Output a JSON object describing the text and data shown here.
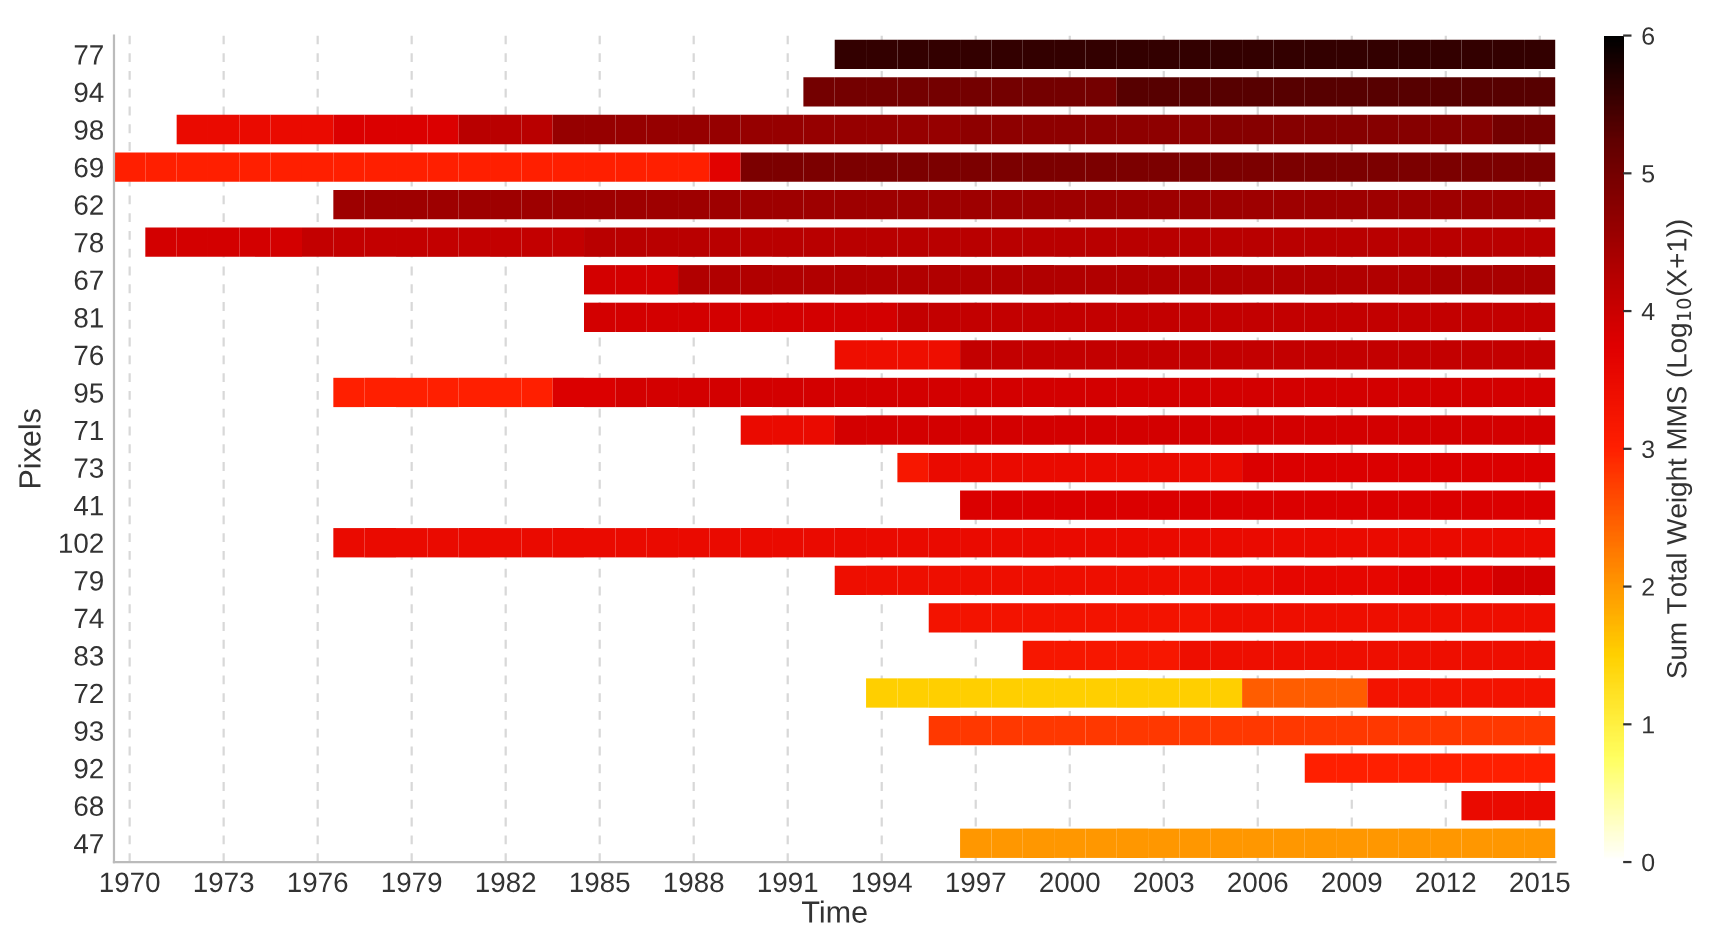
{
  "chart_data": {
    "type": "heatmap",
    "xlabel": "Time",
    "ylabel": "Pixels",
    "clabel": "Sum Total Weight MMS (Log$_{10}$(X+1))",
    "x": [
      1970,
      1971,
      1972,
      1973,
      1974,
      1975,
      1976,
      1977,
      1978,
      1979,
      1980,
      1981,
      1982,
      1983,
      1984,
      1985,
      1986,
      1987,
      1988,
      1989,
      1990,
      1991,
      1992,
      1993,
      1994,
      1995,
      1996,
      1997,
      1998,
      1999,
      2000,
      2001,
      2002,
      2003,
      2004,
      2005,
      2006,
      2007,
      2008,
      2009,
      2010,
      2011,
      2012,
      2013,
      2014,
      2015
    ],
    "xlim": [
      1969.5,
      2015.5
    ],
    "xticks": [
      1970,
      1973,
      1976,
      1979,
      1982,
      1985,
      1988,
      1991,
      1994,
      1997,
      2000,
      2003,
      2006,
      2009,
      2012,
      2015
    ],
    "y_categories": [
      "77",
      "94",
      "98",
      "69",
      "62",
      "78",
      "67",
      "81",
      "76",
      "95",
      "71",
      "73",
      "41",
      "102",
      "79",
      "74",
      "83",
      "72",
      "93",
      "92",
      "68",
      "47"
    ],
    "clim": [
      0,
      6
    ],
    "cticks": [
      0,
      1,
      2,
      3,
      4,
      5,
      6
    ],
    "grid": "x",
    "cells": [
      [
        null,
        null,
        null,
        null,
        null,
        null,
        null,
        null,
        null,
        null,
        null,
        null,
        null,
        null,
        null,
        null,
        null,
        null,
        null,
        null,
        null,
        null,
        null,
        5.6,
        5.6,
        5.6,
        5.6,
        5.6,
        5.6,
        5.6,
        5.6,
        5.6,
        5.6,
        5.6,
        5.6,
        5.6,
        5.6,
        5.6,
        5.6,
        5.6,
        5.6,
        5.6,
        5.6,
        5.6,
        5.6,
        5.6
      ],
      [
        null,
        null,
        null,
        null,
        null,
        null,
        null,
        null,
        null,
        null,
        null,
        null,
        null,
        null,
        null,
        null,
        null,
        null,
        null,
        null,
        null,
        null,
        5.0,
        5.0,
        5.0,
        5.0,
        5.0,
        5.0,
        5.0,
        5.0,
        5.0,
        5.0,
        5.3,
        5.3,
        5.3,
        5.3,
        5.3,
        5.3,
        5.3,
        5.3,
        5.3,
        5.3,
        5.3,
        5.3,
        5.3,
        5.3
      ],
      [
        null,
        null,
        3.5,
        3.5,
        3.5,
        3.5,
        3.5,
        3.8,
        3.8,
        3.8,
        3.8,
        4.2,
        4.2,
        4.2,
        4.6,
        4.6,
        4.6,
        4.6,
        4.6,
        4.6,
        4.6,
        4.6,
        4.6,
        4.6,
        4.6,
        4.6,
        4.6,
        4.7,
        4.7,
        4.7,
        4.7,
        4.7,
        4.7,
        4.7,
        4.7,
        4.8,
        4.8,
        4.8,
        4.8,
        4.8,
        4.8,
        4.8,
        4.8,
        4.8,
        5.0,
        5.0
      ],
      [
        3.0,
        3.0,
        3.0,
        3.0,
        3.0,
        3.0,
        3.0,
        3.0,
        3.0,
        3.0,
        3.0,
        3.0,
        3.0,
        3.0,
        3.0,
        3.0,
        3.0,
        3.0,
        3.0,
        3.7,
        4.9,
        4.9,
        4.9,
        4.9,
        4.9,
        4.9,
        4.9,
        4.9,
        4.9,
        4.9,
        4.9,
        4.9,
        4.9,
        4.9,
        4.9,
        4.9,
        4.9,
        4.9,
        4.9,
        4.9,
        4.9,
        4.9,
        4.9,
        4.9,
        4.9,
        4.9
      ],
      [
        null,
        null,
        null,
        null,
        null,
        null,
        null,
        4.5,
        4.5,
        4.5,
        4.5,
        4.5,
        4.5,
        4.5,
        4.5,
        4.5,
        4.5,
        4.5,
        4.5,
        4.5,
        4.5,
        4.5,
        4.5,
        4.5,
        4.5,
        4.5,
        4.5,
        4.5,
        4.5,
        4.5,
        4.5,
        4.5,
        4.5,
        4.5,
        4.5,
        4.5,
        4.5,
        4.5,
        4.5,
        4.5,
        4.5,
        4.5,
        4.5,
        4.5,
        4.5,
        4.5
      ],
      [
        null,
        3.9,
        3.9,
        3.9,
        3.9,
        3.9,
        4.1,
        4.1,
        4.1,
        4.1,
        4.1,
        4.1,
        4.1,
        4.1,
        4.1,
        4.2,
        4.2,
        4.2,
        4.2,
        4.2,
        4.2,
        4.2,
        4.2,
        4.2,
        4.2,
        4.2,
        4.2,
        4.2,
        4.2,
        4.2,
        4.2,
        4.2,
        4.2,
        4.2,
        4.2,
        4.2,
        4.2,
        4.2,
        4.2,
        4.2,
        4.2,
        4.2,
        4.2,
        4.2,
        4.2,
        4.2
      ],
      [
        null,
        null,
        null,
        null,
        null,
        null,
        null,
        null,
        null,
        null,
        null,
        null,
        null,
        null,
        null,
        3.9,
        3.9,
        3.9,
        4.3,
        4.3,
        4.3,
        4.3,
        4.3,
        4.3,
        4.3,
        4.3,
        4.3,
        4.3,
        4.3,
        4.3,
        4.3,
        4.3,
        4.3,
        4.3,
        4.3,
        4.3,
        4.3,
        4.3,
        4.3,
        4.3,
        4.3,
        4.3,
        4.4,
        4.4,
        4.4,
        4.4
      ],
      [
        null,
        null,
        null,
        null,
        null,
        null,
        null,
        null,
        null,
        null,
        null,
        null,
        null,
        null,
        null,
        3.9,
        3.9,
        3.9,
        3.9,
        3.9,
        3.9,
        3.9,
        3.9,
        3.9,
        3.9,
        4.1,
        4.1,
        4.1,
        4.1,
        4.1,
        4.1,
        4.1,
        4.1,
        4.1,
        4.1,
        4.1,
        4.1,
        4.1,
        4.1,
        4.1,
        4.1,
        4.1,
        4.1,
        4.1,
        4.1,
        4.1
      ],
      [
        null,
        null,
        null,
        null,
        null,
        null,
        null,
        null,
        null,
        null,
        null,
        null,
        null,
        null,
        null,
        null,
        null,
        null,
        null,
        null,
        null,
        null,
        null,
        3.4,
        3.4,
        3.4,
        3.4,
        4.1,
        4.1,
        4.1,
        4.1,
        4.1,
        4.1,
        4.1,
        4.1,
        4.1,
        4.1,
        4.1,
        4.1,
        4.1,
        4.1,
        4.1,
        4.1,
        4.1,
        4.1,
        4.1
      ],
      [
        null,
        null,
        null,
        null,
        null,
        null,
        null,
        3.0,
        3.0,
        3.0,
        3.0,
        3.0,
        3.0,
        3.0,
        3.8,
        3.8,
        3.9,
        3.9,
        3.9,
        3.9,
        3.9,
        3.9,
        3.9,
        3.9,
        3.9,
        3.9,
        3.9,
        3.9,
        3.9,
        3.9,
        3.9,
        3.9,
        3.9,
        3.9,
        3.9,
        3.9,
        3.9,
        3.9,
        3.9,
        3.9,
        3.9,
        3.9,
        3.9,
        3.9,
        3.9,
        3.9
      ],
      [
        null,
        null,
        null,
        null,
        null,
        null,
        null,
        null,
        null,
        null,
        null,
        null,
        null,
        null,
        null,
        null,
        null,
        null,
        null,
        null,
        3.5,
        3.5,
        3.5,
        3.9,
        3.9,
        3.9,
        3.9,
        3.9,
        3.9,
        3.9,
        3.9,
        3.9,
        3.9,
        3.9,
        3.9,
        3.9,
        3.9,
        3.9,
        3.9,
        3.9,
        3.9,
        3.9,
        3.9,
        3.9,
        3.9,
        3.9
      ],
      [
        null,
        null,
        null,
        null,
        null,
        null,
        null,
        null,
        null,
        null,
        null,
        null,
        null,
        null,
        null,
        null,
        null,
        null,
        null,
        null,
        null,
        null,
        null,
        null,
        null,
        3.2,
        3.5,
        3.5,
        3.5,
        3.5,
        3.5,
        3.5,
        3.5,
        3.5,
        3.5,
        3.5,
        3.8,
        3.8,
        3.8,
        3.8,
        3.8,
        3.8,
        3.8,
        3.8,
        3.8,
        3.8
      ],
      [
        null,
        null,
        null,
        null,
        null,
        null,
        null,
        null,
        null,
        null,
        null,
        null,
        null,
        null,
        null,
        null,
        null,
        null,
        null,
        null,
        null,
        null,
        null,
        null,
        null,
        null,
        null,
        3.8,
        3.8,
        3.8,
        3.8,
        3.8,
        3.8,
        3.8,
        3.8,
        3.8,
        3.8,
        3.8,
        3.8,
        3.8,
        3.8,
        3.8,
        3.8,
        3.8,
        3.8,
        3.8
      ],
      [
        null,
        null,
        null,
        null,
        null,
        null,
        null,
        3.5,
        3.5,
        3.5,
        3.5,
        3.5,
        3.5,
        3.5,
        3.5,
        3.5,
        3.5,
        3.5,
        3.5,
        3.5,
        3.5,
        3.5,
        3.5,
        3.5,
        3.5,
        3.5,
        3.5,
        3.5,
        3.5,
        3.5,
        3.5,
        3.5,
        3.5,
        3.5,
        3.5,
        3.5,
        3.5,
        3.5,
        3.5,
        3.5,
        3.5,
        3.5,
        3.5,
        3.5,
        3.5,
        3.5
      ],
      [
        null,
        null,
        null,
        null,
        null,
        null,
        null,
        null,
        null,
        null,
        null,
        null,
        null,
        null,
        null,
        null,
        null,
        null,
        null,
        null,
        null,
        null,
        null,
        3.4,
        3.4,
        3.4,
        3.4,
        3.4,
        3.4,
        3.4,
        3.4,
        3.4,
        3.4,
        3.4,
        3.4,
        3.5,
        3.5,
        3.6,
        3.6,
        3.6,
        3.6,
        3.7,
        3.7,
        3.7,
        3.9,
        3.9
      ],
      [
        null,
        null,
        null,
        null,
        null,
        null,
        null,
        null,
        null,
        null,
        null,
        null,
        null,
        null,
        null,
        null,
        null,
        null,
        null,
        null,
        null,
        null,
        null,
        null,
        null,
        null,
        3.3,
        3.3,
        3.3,
        3.3,
        3.3,
        3.3,
        3.3,
        3.3,
        3.3,
        3.4,
        3.4,
        3.4,
        3.4,
        3.4,
        3.4,
        3.4,
        3.4,
        3.4,
        3.4,
        3.4
      ],
      [
        null,
        null,
        null,
        null,
        null,
        null,
        null,
        null,
        null,
        null,
        null,
        null,
        null,
        null,
        null,
        null,
        null,
        null,
        null,
        null,
        null,
        null,
        null,
        null,
        null,
        null,
        null,
        null,
        null,
        3.2,
        3.2,
        3.2,
        3.2,
        3.2,
        3.4,
        3.4,
        3.4,
        3.4,
        3.4,
        3.4,
        3.4,
        3.4,
        3.4,
        3.4,
        3.4,
        3.4
      ],
      [
        null,
        null,
        null,
        null,
        null,
        null,
        null,
        null,
        null,
        null,
        null,
        null,
        null,
        null,
        null,
        null,
        null,
        null,
        null,
        null,
        null,
        null,
        null,
        null,
        1.5,
        1.5,
        1.5,
        1.5,
        1.5,
        1.5,
        1.5,
        1.5,
        1.5,
        1.5,
        1.5,
        1.5,
        2.5,
        2.5,
        2.5,
        2.5,
        3.3,
        3.3,
        3.3,
        3.3,
        3.3,
        3.3
      ],
      [
        null,
        null,
        null,
        null,
        null,
        null,
        null,
        null,
        null,
        null,
        null,
        null,
        null,
        null,
        null,
        null,
        null,
        null,
        null,
        null,
        null,
        null,
        null,
        null,
        null,
        null,
        2.8,
        2.8,
        2.8,
        2.8,
        2.8,
        2.8,
        2.8,
        2.8,
        2.8,
        2.8,
        2.8,
        2.8,
        2.8,
        2.8,
        2.8,
        2.8,
        2.8,
        2.8,
        2.8,
        2.8
      ],
      [
        null,
        null,
        null,
        null,
        null,
        null,
        null,
        null,
        null,
        null,
        null,
        null,
        null,
        null,
        null,
        null,
        null,
        null,
        null,
        null,
        null,
        null,
        null,
        null,
        null,
        null,
        null,
        null,
        null,
        null,
        null,
        null,
        null,
        null,
        null,
        null,
        null,
        null,
        3.0,
        3.0,
        3.0,
        3.0,
        3.0,
        3.0,
        3.0,
        3.0
      ],
      [
        null,
        null,
        null,
        null,
        null,
        null,
        null,
        null,
        null,
        null,
        null,
        null,
        null,
        null,
        null,
        null,
        null,
        null,
        null,
        null,
        null,
        null,
        null,
        null,
        null,
        null,
        null,
        null,
        null,
        null,
        null,
        null,
        null,
        null,
        null,
        null,
        null,
        null,
        null,
        null,
        null,
        null,
        null,
        3.5,
        3.5,
        3.5
      ],
      [
        null,
        null,
        null,
        null,
        null,
        null,
        null,
        null,
        null,
        null,
        null,
        null,
        null,
        null,
        null,
        null,
        null,
        null,
        null,
        null,
        null,
        null,
        null,
        null,
        null,
        null,
        null,
        2.0,
        2.0,
        2.0,
        2.0,
        2.0,
        2.0,
        2.0,
        2.0,
        2.0,
        2.0,
        2.0,
        2.0,
        2.0,
        2.0,
        2.0,
        2.0,
        2.0,
        2.0,
        2.0
      ]
    ]
  }
}
